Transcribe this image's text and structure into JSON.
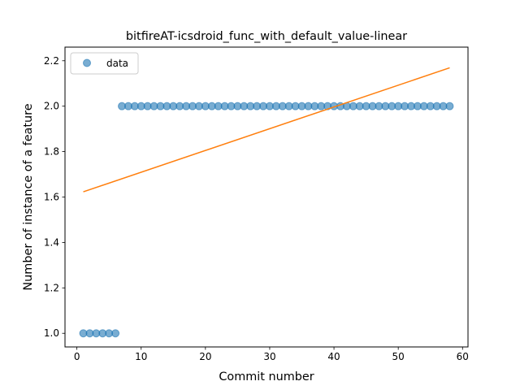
{
  "chart_data": {
    "type": "scatter",
    "title": "bitfireAT-icsdroid_func_with_default_value-linear",
    "xlabel": "Commit number",
    "ylabel": "Number of instance of a feature",
    "xlim": [
      -1.85,
      60.85
    ],
    "ylim": [
      0.94,
      2.26
    ],
    "xticks": [
      0,
      10,
      20,
      30,
      40,
      50,
      60
    ],
    "yticks": [
      1.0,
      1.2,
      1.4,
      1.6,
      1.8,
      2.0,
      2.2
    ],
    "ytick_labels": [
      "1.0",
      "1.2",
      "1.4",
      "1.6",
      "1.8",
      "2.0",
      "2.2"
    ],
    "grid": false,
    "legend": {
      "position": "top-left",
      "entries": [
        "data"
      ]
    },
    "series": [
      {
        "name": "data",
        "type": "scatter",
        "color": "#1f77b4",
        "alpha": 0.6,
        "x": [
          1,
          2,
          3,
          4,
          5,
          6,
          7,
          8,
          9,
          10,
          11,
          12,
          13,
          14,
          15,
          16,
          17,
          18,
          19,
          20,
          21,
          22,
          23,
          24,
          25,
          26,
          27,
          28,
          29,
          30,
          31,
          32,
          33,
          34,
          35,
          36,
          37,
          38,
          39,
          40,
          41,
          42,
          43,
          44,
          45,
          46,
          47,
          48,
          49,
          50,
          51,
          52,
          53,
          54,
          55,
          56,
          57,
          58
        ],
        "y": [
          1,
          1,
          1,
          1,
          1,
          1,
          2,
          2,
          2,
          2,
          2,
          2,
          2,
          2,
          2,
          2,
          2,
          2,
          2,
          2,
          2,
          2,
          2,
          2,
          2,
          2,
          2,
          2,
          2,
          2,
          2,
          2,
          2,
          2,
          2,
          2,
          2,
          2,
          2,
          2,
          2,
          2,
          2,
          2,
          2,
          2,
          2,
          2,
          2,
          2,
          2,
          2,
          2,
          2,
          2,
          2,
          2,
          2
        ]
      },
      {
        "type": "line",
        "color": "#ff7f0e",
        "x": [
          1,
          58
        ],
        "y": [
          1.623,
          2.169
        ]
      }
    ]
  }
}
